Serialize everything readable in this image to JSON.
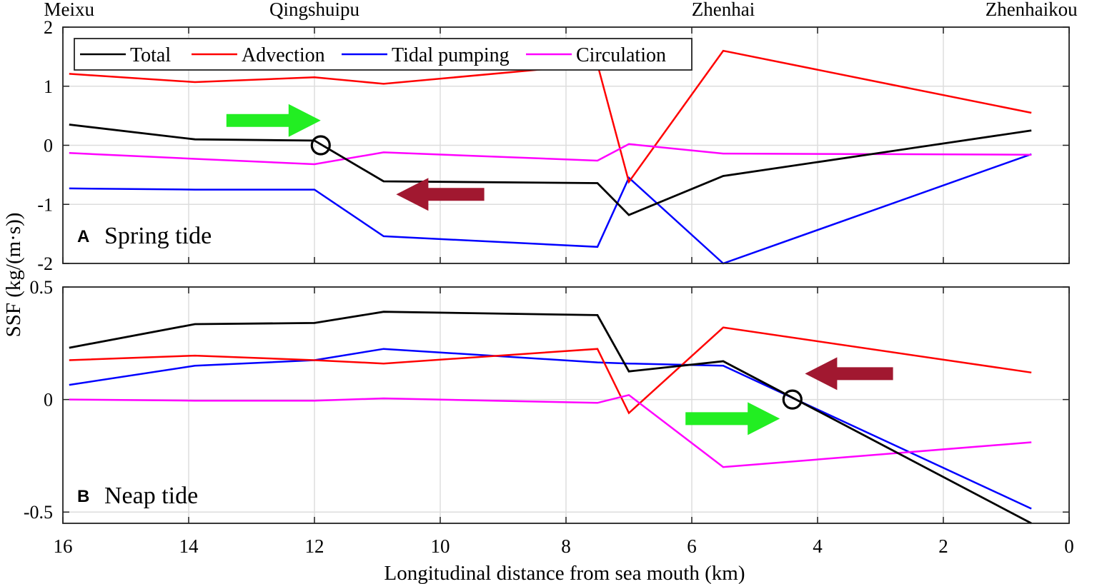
{
  "figure": {
    "ylabel": "SSF (kg/(m·s))",
    "xlabel": "Longitudinal distance from sea mouth (km)",
    "xlim": [
      16,
      0
    ],
    "xticks": [
      16,
      14,
      12,
      10,
      8,
      6,
      4,
      2,
      0
    ],
    "stations": [
      {
        "name": "Meixu",
        "x": 15.9
      },
      {
        "name": "Qingshuipu",
        "x": 12.0
      },
      {
        "name": "Zhenhai",
        "x": 5.5
      },
      {
        "name": "Zhenhaikou",
        "x": 0.6
      }
    ],
    "legend": [
      "Total",
      "Advection",
      "Tidal pumping",
      "Circulation"
    ]
  },
  "colors": {
    "Total": "#000000",
    "Advection": "#ff0000",
    "Tidal pumping": "#0000ff",
    "Circulation": "#ff00ff",
    "green_arrow": "#22ee22",
    "dark_red_arrow": "#a11830",
    "grid": "#dddddd"
  },
  "chart_data": [
    {
      "type": "line",
      "panel_letter": "A",
      "title": "Spring tide",
      "ylim": [
        -2,
        2
      ],
      "yticks": [
        2,
        1,
        0,
        -1,
        -2
      ],
      "ytick_labels": [
        "2",
        "1",
        "0",
        "-1",
        "-2"
      ],
      "x": [
        15.9,
        13.9,
        12.0,
        10.9,
        7.5,
        7.0,
        5.5,
        0.6
      ],
      "series": [
        {
          "name": "Total",
          "values": [
            0.35,
            0.1,
            0.08,
            -0.61,
            -0.64,
            -1.18,
            -0.52,
            0.25
          ]
        },
        {
          "name": "Advection",
          "values": [
            1.21,
            1.07,
            1.15,
            1.04,
            1.37,
            -0.62,
            1.6,
            0.55
          ]
        },
        {
          "name": "Tidal pumping",
          "values": [
            -0.73,
            -0.75,
            -0.75,
            -1.54,
            -1.72,
            -0.55,
            -2.0,
            -0.15
          ]
        },
        {
          "name": "Circulation",
          "values": [
            -0.13,
            -0.23,
            -0.32,
            -0.12,
            -0.26,
            0.02,
            -0.14,
            -0.16
          ]
        }
      ],
      "annotations": {
        "circle": {
          "x": 11.9,
          "y": 0.0
        },
        "green_arrow": {
          "x_from": 13.4,
          "x_to": 11.9,
          "y": 0.42,
          "direction": "toward sea mouth"
        },
        "red_arrow": {
          "x_from": 9.3,
          "x_to": 10.7,
          "y": -0.83,
          "direction": "landward"
        }
      }
    },
    {
      "type": "line",
      "panel_letter": "B",
      "title": "Neap tide",
      "ylim": [
        -0.55,
        0.5
      ],
      "yticks": [
        0.5,
        0,
        -0.5
      ],
      "ytick_labels": [
        "0.5",
        "0",
        "-0.5"
      ],
      "x": [
        15.9,
        13.9,
        12.0,
        10.9,
        7.5,
        7.0,
        5.5,
        0.6
      ],
      "series": [
        {
          "name": "Total",
          "values": [
            0.23,
            0.335,
            0.34,
            0.39,
            0.375,
            0.125,
            0.17,
            -0.55
          ]
        },
        {
          "name": "Advection",
          "values": [
            0.175,
            0.195,
            0.175,
            0.16,
            0.225,
            -0.06,
            0.32,
            0.12
          ]
        },
        {
          "name": "Tidal pumping",
          "values": [
            0.065,
            0.15,
            0.175,
            0.225,
            0.165,
            0.16,
            0.15,
            -0.485
          ]
        },
        {
          "name": "Circulation",
          "values": [
            0.0,
            -0.005,
            -0.005,
            0.005,
            -0.015,
            0.02,
            -0.3,
            -0.19
          ]
        }
      ],
      "annotations": {
        "circle": {
          "x": 4.4,
          "y": 0.0
        },
        "green_arrow": {
          "x_from": 6.1,
          "x_to": 4.6,
          "y": -0.085,
          "direction": "toward sea mouth"
        },
        "red_arrow": {
          "x_from": 2.8,
          "x_to": 4.2,
          "y": 0.115,
          "direction": "landward"
        }
      }
    }
  ]
}
